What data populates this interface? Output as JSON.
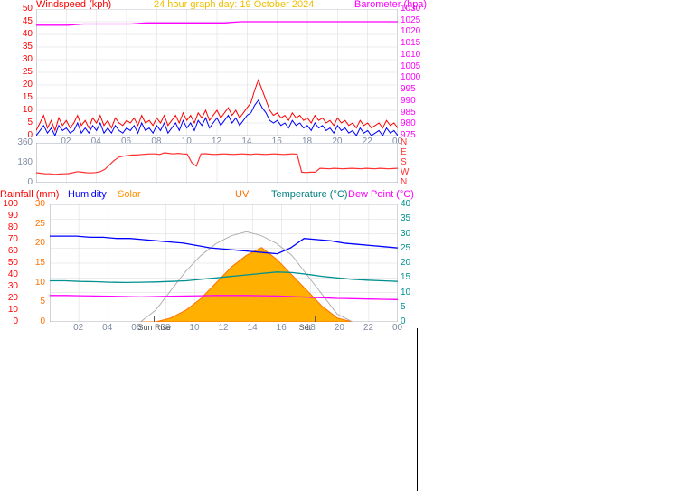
{
  "meta": {
    "title_left": "Windspeed (kph)",
    "title_center": "24 hour graph day: 19 October 2024",
    "title_right": "Barometer (hpa)"
  },
  "palette": {
    "bg": "#ffffff",
    "grid": "#d9d9d9",
    "axis": "#7d8aa0",
    "text": "#7d8aa0",
    "wind_red": "#ff0000",
    "wind_blue": "#0000ff",
    "baro_magenta": "#ff00ff",
    "dir_red": "#ff3030",
    "humidity_blue": "#0000ff",
    "temp_teal": "#009090",
    "dew_magenta": "#ff00ff",
    "rainfall_red": "#ff0000",
    "solar_fill": "#ffb000",
    "solar_stroke": "#ff7000",
    "uv_curve": "#b0b0b0",
    "left2_orange": "#ff7000",
    "divider_black": "#000000"
  },
  "chart1": {
    "type": "line",
    "left_label": "Windspeed (kph)",
    "right_label": "Barometer (hpa)",
    "y_left": {
      "min": 0,
      "max": 50,
      "ticks": [
        0,
        5,
        10,
        15,
        20,
        25,
        30,
        35,
        40,
        45,
        50
      ],
      "color": "#ff0000"
    },
    "y_right": {
      "min": 975,
      "max": 1030,
      "ticks": [
        975,
        980,
        985,
        990,
        995,
        1000,
        1005,
        1010,
        1015,
        1020,
        1025,
        1030
      ],
      "color": "#ff00ff"
    },
    "x": {
      "min": 0,
      "max": 24,
      "ticks": [
        2,
        4,
        6,
        8,
        10,
        12,
        14,
        16,
        18,
        20,
        22,
        0
      ],
      "labels": [
        "02",
        "04",
        "06",
        "08",
        "10",
        "12",
        "14",
        "16",
        "18",
        "20",
        "22",
        "00"
      ],
      "color": "#7d8aa0"
    },
    "series": {
      "wind_gust": {
        "color": "#ff0000",
        "width": 1,
        "data": [
          2,
          5,
          8,
          3,
          6,
          2,
          7,
          4,
          6,
          3,
          5,
          8,
          4,
          6,
          3,
          7,
          5,
          8,
          4,
          6,
          3,
          7,
          5,
          4,
          6,
          5,
          7,
          4,
          8,
          5,
          6,
          4,
          7,
          5,
          8,
          4,
          6,
          8,
          5,
          9,
          6,
          8,
          5,
          9,
          7,
          10,
          6,
          8,
          10,
          7,
          9,
          11,
          8,
          10,
          7,
          9,
          11,
          13,
          18,
          22,
          18,
          14,
          10,
          8,
          9,
          7,
          8,
          6,
          9,
          7,
          8,
          6,
          7,
          5,
          8,
          6,
          7,
          5,
          6,
          4,
          7,
          5,
          6,
          4,
          5,
          3,
          6,
          4,
          5,
          3,
          4,
          5,
          3,
          6,
          4,
          5,
          3
        ]
      },
      "wind_avg": {
        "color": "#0000ff",
        "width": 1,
        "data": [
          0,
          2,
          4,
          1,
          3,
          0,
          4,
          2,
          3,
          1,
          2,
          5,
          1,
          3,
          1,
          4,
          2,
          5,
          1,
          3,
          1,
          4,
          2,
          1,
          3,
          2,
          4,
          1,
          5,
          2,
          3,
          1,
          4,
          2,
          5,
          1,
          3,
          5,
          2,
          6,
          3,
          5,
          2,
          6,
          4,
          7,
          3,
          5,
          7,
          4,
          6,
          8,
          5,
          7,
          4,
          6,
          8,
          9,
          12,
          14,
          11,
          9,
          6,
          5,
          6,
          4,
          5,
          3,
          6,
          4,
          5,
          3,
          4,
          2,
          5,
          3,
          4,
          2,
          3,
          1,
          4,
          2,
          3,
          1,
          2,
          0,
          3,
          1,
          2,
          0,
          1,
          2,
          0,
          3,
          1,
          2,
          0
        ]
      },
      "barometer": {
        "color": "#ff00ff",
        "width": 1.3,
        "right_axis": true,
        "data": [
          1023,
          1023,
          1023,
          1023.5,
          1023.5,
          1023.5,
          1023.5,
          1024,
          1024,
          1024,
          1024,
          1024,
          1024,
          1024.5,
          1024.5,
          1024.5,
          1024.5,
          1024.5,
          1024.5,
          1024.5,
          1024.5,
          1024.5,
          1024.5,
          1024.5
        ]
      }
    }
  },
  "chart2": {
    "type": "line",
    "y_left": {
      "min": 0,
      "max": 360,
      "ticks": [
        0,
        180,
        360
      ],
      "color": "#7d8aa0"
    },
    "x": {
      "min": 0,
      "max": 24,
      "ticks": [
        2,
        4,
        6,
        8,
        10,
        12,
        14,
        16,
        18,
        20,
        22,
        0
      ]
    },
    "compass_labels": [
      "N",
      "W",
      "S",
      "E",
      "N"
    ],
    "series": {
      "direction": {
        "color": "#ff3030",
        "width": 1.2,
        "data": [
          90,
          85,
          80,
          80,
          75,
          78,
          80,
          82,
          90,
          100,
          95,
          90,
          88,
          92,
          100,
          120,
          160,
          200,
          230,
          240,
          245,
          250,
          250,
          255,
          258,
          260,
          260,
          255,
          270,
          265,
          260,
          265,
          260,
          258,
          180,
          150,
          260,
          262,
          258,
          255,
          258,
          260,
          258,
          255,
          258,
          260,
          258,
          255,
          260,
          258,
          255,
          258,
          260,
          258,
          255,
          258,
          260,
          258,
          95,
          92,
          95,
          95,
          130,
          128,
          125,
          130,
          128,
          125,
          128,
          130,
          128,
          125,
          130,
          128,
          125,
          130,
          128,
          125,
          128,
          130
        ]
      }
    }
  },
  "chart3": {
    "type": "mixed",
    "legend": [
      {
        "text": "Rainfall (mm)",
        "color": "#ff0000"
      },
      {
        "text": "Humidity",
        "color": "#0000ff"
      },
      {
        "text": "Solar",
        "color": "#ff9000"
      },
      {
        "text": "UV",
        "color": "#ff7000"
      },
      {
        "text": "Temperature (°C)",
        "color": "#008080"
      },
      {
        "text": "Dew Point (°C)",
        "color": "#ff00ff"
      }
    ],
    "y_rainfall": {
      "min": 0,
      "max": 100,
      "ticks": [
        0,
        10,
        20,
        30,
        40,
        50,
        60,
        70,
        80,
        90,
        100
      ],
      "color": "#ff0000"
    },
    "y_solar": {
      "min": 0,
      "max": 30,
      "ticks": [
        0,
        5,
        10,
        15,
        20,
        25,
        30
      ],
      "color": "#ff7000"
    },
    "y_temp": {
      "min": 0,
      "max": 40,
      "ticks": [
        0,
        5,
        10,
        15,
        20,
        25,
        30,
        35,
        40
      ],
      "color": "#009090"
    },
    "x": {
      "min": 0,
      "max": 24,
      "ticks": [
        2,
        4,
        6,
        8,
        10,
        12,
        14,
        16,
        18,
        20,
        22,
        0
      ],
      "labels": [
        "02",
        "04",
        "06",
        "08",
        "10",
        "12",
        "14",
        "16",
        "18",
        "20",
        "22",
        "00"
      ],
      "color": "#7d8aa0"
    },
    "sunrise_label": "Sun Rise",
    "sunset_label": "Set",
    "sunrise_x": 7.2,
    "sunset_x": 18.3,
    "series": {
      "humidity": {
        "color": "#0000ff",
        "width": 1.3,
        "data": [
          73,
          73,
          73,
          72,
          72,
          71,
          71,
          70,
          69,
          68,
          67,
          65,
          63,
          62,
          61,
          60,
          59,
          58,
          63,
          71,
          70,
          69,
          67,
          66,
          65,
          64,
          63
        ]
      },
      "temperature": {
        "color": "#009090",
        "width": 1.3,
        "right_axis": true,
        "data": [
          14,
          14,
          13.8,
          13.7,
          13.5,
          13.4,
          13.5,
          13.6,
          13.8,
          14,
          14.5,
          15,
          15.5,
          16,
          16.5,
          17,
          16.8,
          16.2,
          15.5,
          15,
          14.5,
          14.2,
          14,
          13.8
        ]
      },
      "dewpoint": {
        "color": "#ff00ff",
        "width": 1.3,
        "right_axis": true,
        "data": [
          9,
          9,
          8.9,
          8.8,
          8.7,
          8.6,
          8.5,
          8.6,
          8.7,
          8.8,
          8.9,
          9,
          9,
          9,
          8.9,
          8.8,
          8.6,
          8.4,
          8.2,
          8,
          7.9,
          7.8,
          7.7,
          7.6
        ]
      },
      "solar": {
        "color": "#ffb000",
        "stroke": "#ff7000",
        "fill": true,
        "data": [
          0,
          0,
          0,
          0,
          0,
          0,
          0,
          0,
          1,
          3,
          6,
          10,
          14,
          17,
          19,
          16,
          12,
          8,
          4,
          1,
          0,
          0,
          0,
          0
        ]
      },
      "uv_curve": {
        "color": "#b0b0b0",
        "width": 1,
        "data": [
          0,
          0,
          0,
          0,
          0,
          0,
          0,
          3,
          8,
          13,
          17,
          20,
          22,
          23,
          22,
          20,
          17,
          12,
          7,
          2,
          0,
          0,
          0,
          0
        ]
      }
    }
  }
}
